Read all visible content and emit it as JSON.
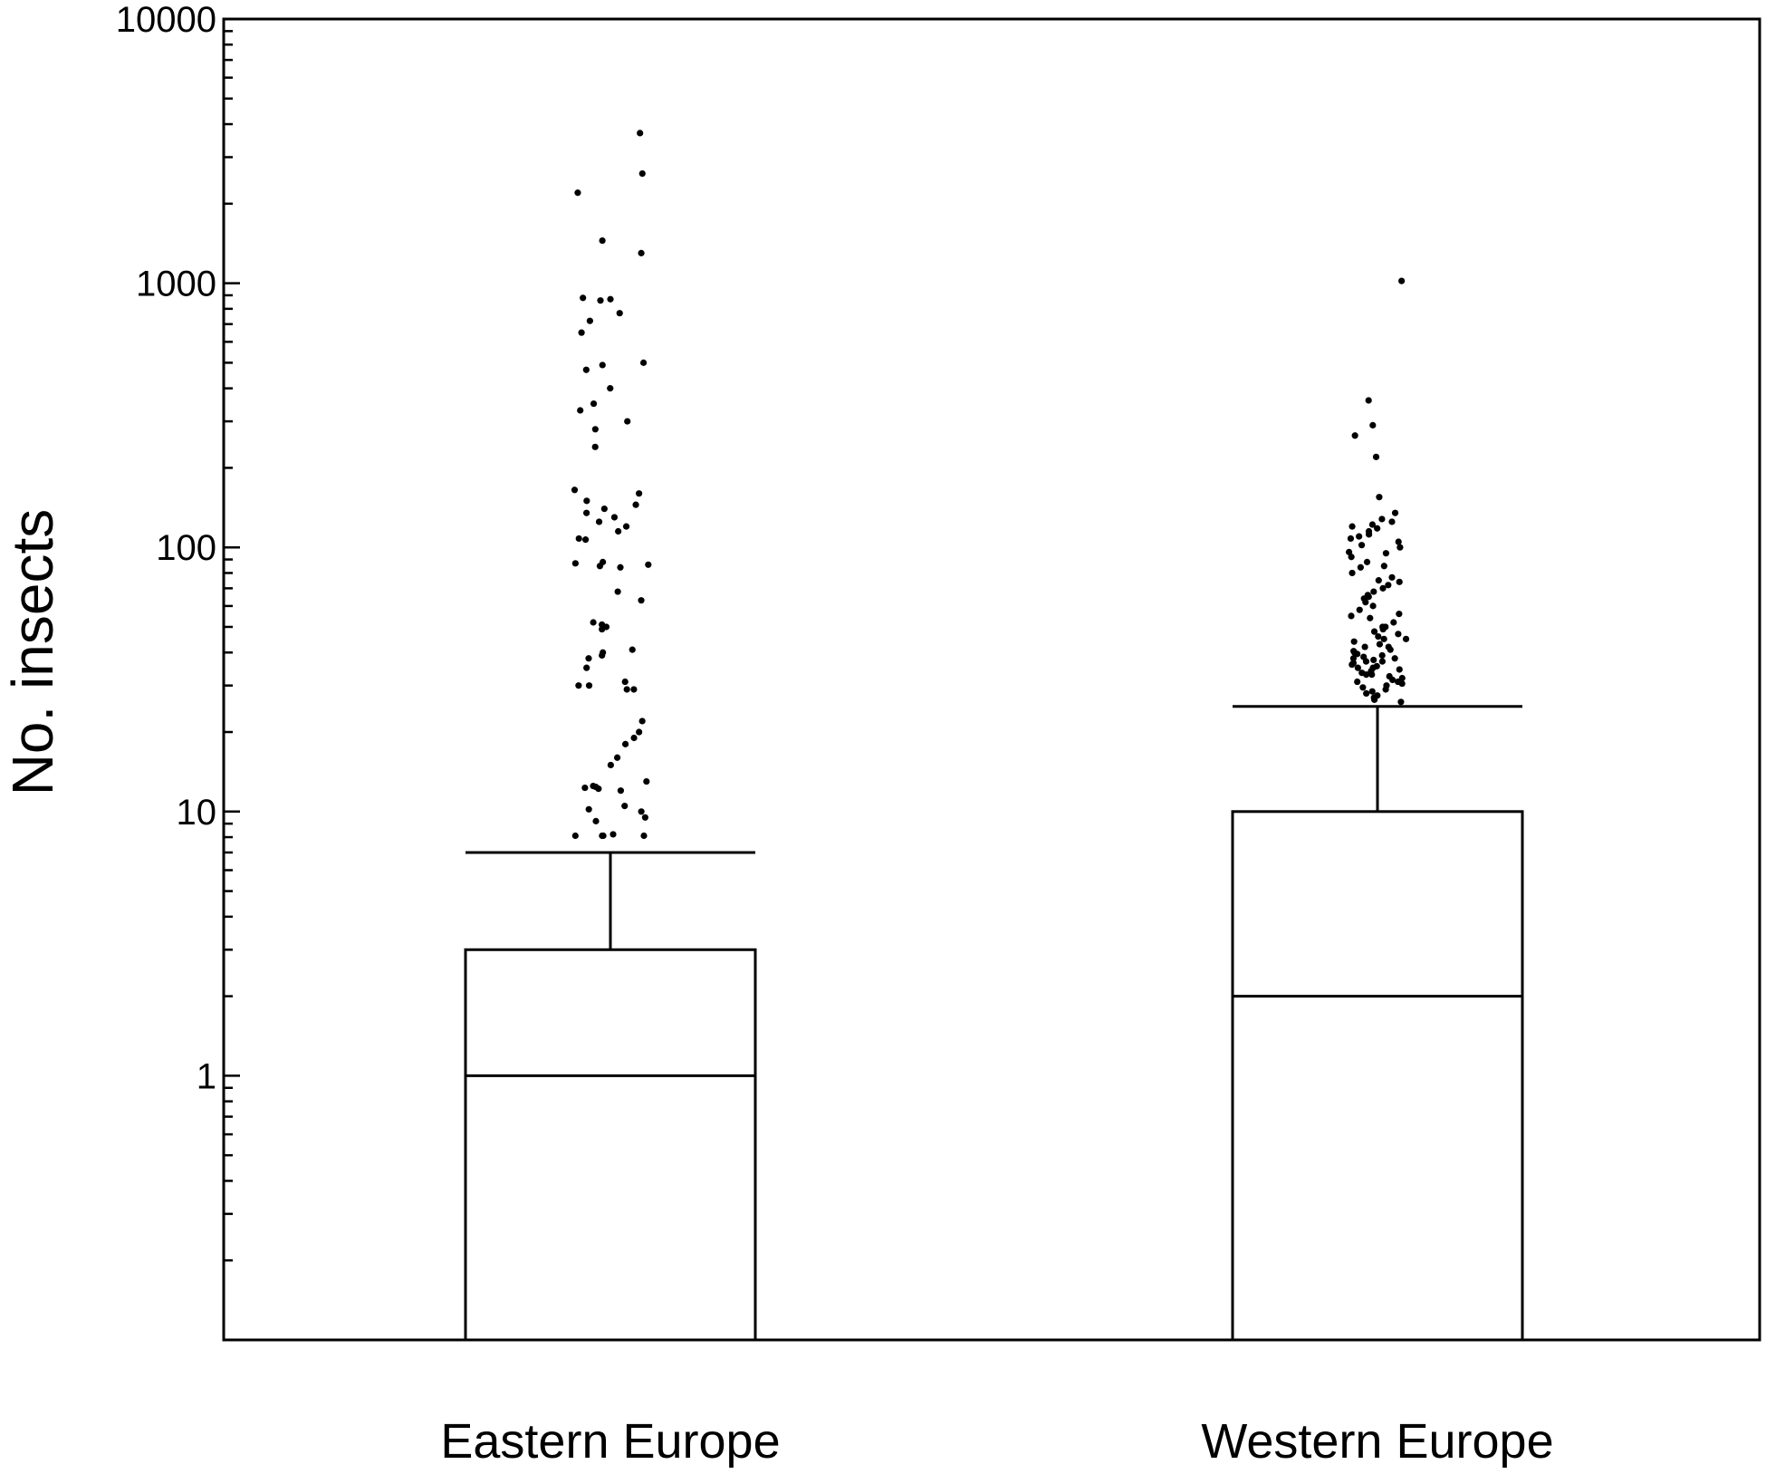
{
  "chart_data": {
    "type": "box",
    "ylabel": "No. insects",
    "xlabel": "",
    "yscale": "log",
    "ylim": [
      0.1,
      10000
    ],
    "yticks": [
      {
        "value": 1,
        "label": "1"
      },
      {
        "value": 10,
        "label": "10"
      },
      {
        "value": 100,
        "label": "100"
      },
      {
        "value": 1000,
        "label": "1000"
      },
      {
        "value": 10000,
        "label": "10000"
      }
    ],
    "categories": [
      "Eastern Europe",
      "Western Europe"
    ],
    "boxes": [
      {
        "category": "Eastern Europe",
        "min": 0.1,
        "q1": 0.1,
        "median": 1,
        "q3": 3,
        "whisker_high": 7,
        "outliers": [
          3700,
          2600,
          2200,
          1450,
          1300,
          880,
          860,
          870,
          770,
          720,
          650,
          500,
          490,
          470,
          400,
          350,
          330,
          300,
          280,
          240,
          165,
          160,
          150,
          145,
          140,
          135,
          130,
          125,
          120,
          115,
          108,
          107,
          88,
          87,
          86,
          85,
          84,
          68,
          63,
          52,
          51,
          50,
          49,
          41,
          40,
          39,
          38,
          35,
          31,
          30,
          30,
          29,
          29,
          22,
          20,
          19,
          18,
          16,
          15,
          13,
          12.5,
          12.4,
          12.3,
          12.2,
          12,
          10.5,
          10.2,
          10,
          9.5,
          9.2,
          8.2,
          8.1,
          8.1,
          8.1,
          8.1
        ]
      },
      {
        "category": "Western Europe",
        "min": 0.1,
        "q1": 0.1,
        "median": 2,
        "q3": 10,
        "whisker_high": 25,
        "outliers": [
          1020,
          360,
          290,
          265,
          220,
          155,
          135,
          128,
          125,
          122,
          120,
          118,
          115,
          112,
          110,
          108,
          105,
          102,
          100,
          96,
          92,
          88,
          84,
          80,
          77,
          74,
          72,
          70,
          68,
          66,
          64,
          62,
          60,
          58,
          56,
          54,
          52,
          50,
          49,
          48,
          47,
          46,
          45,
          44,
          43,
          42,
          41,
          40.5,
          40,
          39.5,
          39,
          38.5,
          38,
          37.5,
          37,
          36.5,
          36,
          35.5,
          35,
          34.5,
          34,
          33.5,
          33,
          32.5,
          32,
          31.5,
          31,
          30.5,
          30,
          29.5,
          29,
          28.5,
          28,
          27.5,
          27,
          26.5,
          26,
          35,
          38,
          42,
          45,
          50,
          55,
          65,
          75,
          85,
          95,
          31,
          33,
          37
        ]
      }
    ]
  }
}
